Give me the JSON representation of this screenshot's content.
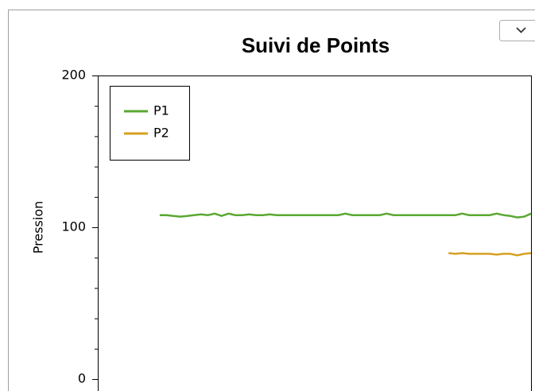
{
  "chart_data": {
    "type": "line",
    "title": "Suivi de Points",
    "y_label": "Pression",
    "categories": [
      null,
      null,
      null,
      null,
      null,
      null,
      null,
      null,
      null,
      null,
      null,
      null,
      null,
      null,
      null,
      null,
      null,
      null,
      null,
      null,
      null,
      null,
      null,
      null,
      null,
      null,
      null,
      null,
      null,
      null,
      null,
      null,
      null,
      null,
      null,
      null,
      null,
      null,
      null,
      null,
      null,
      null,
      null,
      null,
      null,
      null,
      null,
      null,
      null,
      null,
      null,
      null,
      null,
      null,
      null,
      null,
      null,
      null,
      null,
      null,
      null,
      null,
      null,
      null
    ],
    "series": [
      {
        "name": "P1",
        "color": "#5aa832",
        "values": [
          null,
          null,
          null,
          null,
          null,
          null,
          null,
          null,
          null,
          108,
          108,
          107.5,
          107,
          107.5,
          108,
          108.5,
          108,
          109,
          107.5,
          109,
          108,
          108,
          108.5,
          108,
          108,
          108.5,
          108,
          108,
          108,
          108,
          108,
          108,
          108,
          108,
          108,
          108,
          109,
          108,
          108,
          108,
          108,
          108,
          109,
          108,
          108,
          108,
          108,
          108,
          108,
          108,
          108,
          108,
          108,
          109,
          108,
          108,
          108,
          108,
          109,
          108,
          107.5,
          106.5,
          107,
          109
        ]
      },
      {
        "name": "P2",
        "color": "#d6a021",
        "values": [
          null,
          null,
          null,
          null,
          null,
          null,
          null,
          null,
          null,
          null,
          null,
          null,
          null,
          null,
          null,
          null,
          null,
          null,
          null,
          null,
          null,
          null,
          null,
          null,
          null,
          null,
          null,
          null,
          null,
          null,
          null,
          null,
          null,
          null,
          null,
          null,
          null,
          null,
          null,
          null,
          null,
          null,
          null,
          null,
          null,
          null,
          null,
          null,
          null,
          null,
          null,
          83,
          82.5,
          83,
          82.5,
          82.5,
          82.5,
          82.5,
          82,
          82.5,
          82.5,
          81.5,
          82.5,
          83
        ]
      }
    ],
    "ylim": [
      0,
      200
    ],
    "yticks": [
      0,
      100,
      200
    ],
    "y_minor_ticks": [
      20,
      40,
      60,
      80,
      120,
      140,
      160,
      180
    ],
    "legend": "upper left"
  }
}
